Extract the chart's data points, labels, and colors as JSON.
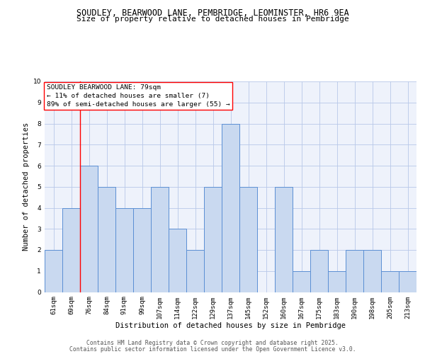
{
  "title_line1": "SOUDLEY, BEARWOOD LANE, PEMBRIDGE, LEOMINSTER, HR6 9EA",
  "title_line2": "Size of property relative to detached houses in Pembridge",
  "xlabel": "Distribution of detached houses by size in Pembridge",
  "ylabel": "Number of detached properties",
  "categories": [
    "61sqm",
    "69sqm",
    "76sqm",
    "84sqm",
    "91sqm",
    "99sqm",
    "107sqm",
    "114sqm",
    "122sqm",
    "129sqm",
    "137sqm",
    "145sqm",
    "152sqm",
    "160sqm",
    "167sqm",
    "175sqm",
    "183sqm",
    "190sqm",
    "198sqm",
    "205sqm",
    "213sqm"
  ],
  "values": [
    2,
    4,
    6,
    5,
    4,
    4,
    5,
    3,
    2,
    5,
    8,
    5,
    0,
    5,
    1,
    2,
    1,
    2,
    2,
    1,
    1
  ],
  "bar_color": "#c9d9f0",
  "bar_edge_color": "#5b8fd4",
  "red_line_index": 2,
  "ylim": [
    0,
    10
  ],
  "yticks": [
    0,
    1,
    2,
    3,
    4,
    5,
    6,
    7,
    8,
    9,
    10
  ],
  "annotation_text": "SOUDLEY BEARWOOD LANE: 79sqm\n← 11% of detached houses are smaller (7)\n89% of semi-detached houses are larger (55) →",
  "annotation_box_color": "white",
  "annotation_box_edge_color": "red",
  "footer_line1": "Contains HM Land Registry data © Crown copyright and database right 2025.",
  "footer_line2": "Contains public sector information licensed under the Open Government Licence v3.0.",
  "background_color": "#eef2fb",
  "grid_color": "#b8c8e8",
  "title_fontsize": 8.5,
  "subtitle_fontsize": 8,
  "axis_label_fontsize": 7.5,
  "tick_fontsize": 6.5,
  "annotation_fontsize": 6.8,
  "footer_fontsize": 5.8
}
